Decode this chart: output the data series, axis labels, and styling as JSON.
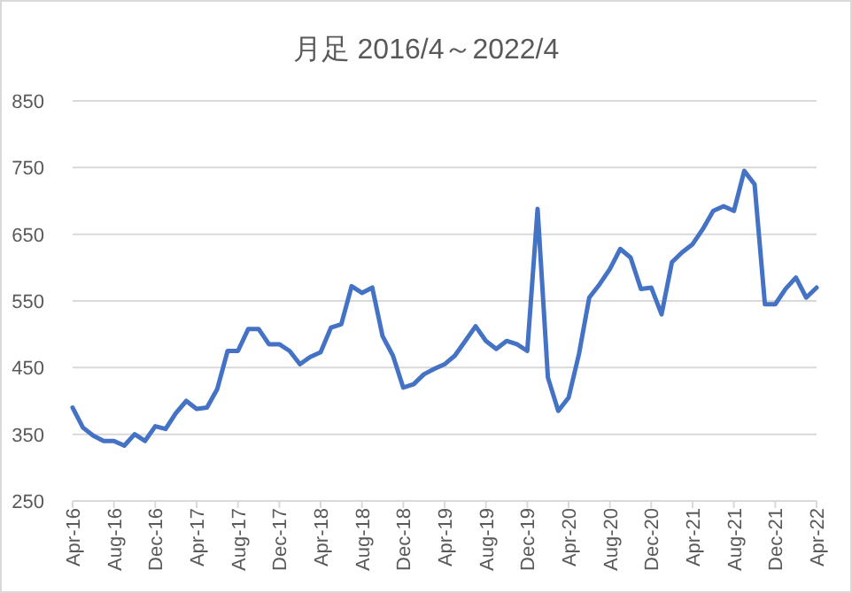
{
  "chart_data": {
    "type": "line",
    "title": "月足 2016/4～2022/4",
    "categories": [
      "Apr-16",
      null,
      null,
      null,
      "Aug-16",
      null,
      null,
      null,
      "Dec-16",
      null,
      null,
      null,
      "Apr-17",
      null,
      null,
      null,
      "Aug-17",
      null,
      null,
      null,
      "Dec-17",
      null,
      null,
      null,
      "Apr-18",
      null,
      null,
      null,
      "Aug-18",
      null,
      null,
      null,
      "Dec-18",
      null,
      null,
      null,
      "Apr-19",
      null,
      null,
      null,
      "Aug-19",
      null,
      null,
      null,
      "Dec-19",
      null,
      null,
      null,
      "Apr-20",
      null,
      null,
      null,
      "Aug-20",
      null,
      null,
      null,
      "Dec-20",
      null,
      null,
      null,
      "Apr-21",
      null,
      null,
      null,
      "Aug-21",
      null,
      null,
      null,
      "Dec-21",
      null,
      null,
      null,
      "Apr-22"
    ],
    "series": [
      {
        "color": "#4472c4",
        "values": [
          390,
          360,
          348,
          340,
          340,
          333,
          350,
          340,
          362,
          358,
          382,
          400,
          388,
          390,
          418,
          475,
          475,
          508,
          508,
          485,
          485,
          475,
          455,
          466,
          473,
          510,
          515,
          572,
          562,
          570,
          497,
          468,
          420,
          425,
          440,
          448,
          455,
          468,
          490,
          512,
          490,
          478,
          490,
          485,
          475,
          688,
          435,
          385,
          405,
          470,
          555,
          575,
          598,
          628,
          615,
          568,
          570,
          530,
          608,
          623,
          635,
          658,
          685,
          692,
          685,
          745,
          725,
          545,
          545,
          568,
          585,
          555,
          570
        ]
      }
    ],
    "ylim": [
      250,
      850
    ],
    "yticks": [
      250,
      350,
      450,
      550,
      650,
      750,
      850
    ],
    "grid": "y",
    "marker": "none",
    "line_style": "solid"
  }
}
